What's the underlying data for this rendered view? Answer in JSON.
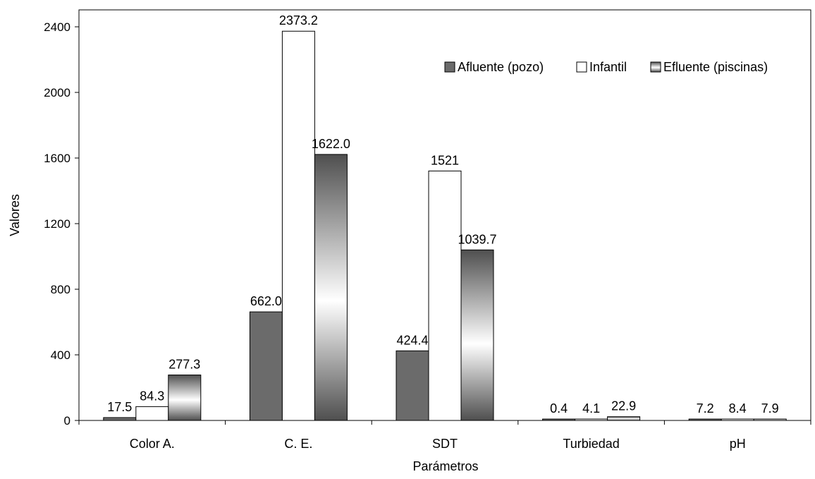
{
  "chart_data": {
    "type": "bar",
    "title": "",
    "xlabel": "Parámetros",
    "ylabel": "Valores",
    "ylim": [
      0,
      2400
    ],
    "yticks": [
      0,
      400,
      800,
      1200,
      1600,
      2000,
      2400
    ],
    "categories": [
      "Color A.",
      "C. E.",
      "SDT",
      "Turbiedad",
      "pH"
    ],
    "series": [
      {
        "name": "Afluente (pozo)",
        "values": [
          17.5,
          662.0,
          424.4,
          0.4,
          7.2
        ],
        "labels": [
          "17.5",
          "662.0",
          "424.4",
          "0.4",
          "7.2"
        ],
        "color": "#6b6b6b",
        "fill": "solid"
      },
      {
        "name": "Infantil",
        "values": [
          84.3,
          2373.2,
          1521,
          4.1,
          8.4
        ],
        "labels": [
          "84.3",
          "2373.2",
          "1521",
          "4.1",
          "8.4"
        ],
        "color": "#ffffff",
        "fill": "solid"
      },
      {
        "name": "Efluente (piscinas)",
        "values": [
          277.3,
          1622.0,
          1039.7,
          22.9,
          7.9
        ],
        "labels": [
          "277.3",
          "1622.0",
          "1039.7",
          "22.9",
          "7.9"
        ],
        "color": "#5a5a5a",
        "fill": "gradient"
      }
    ],
    "legend_position": "top-right",
    "grid": false
  }
}
